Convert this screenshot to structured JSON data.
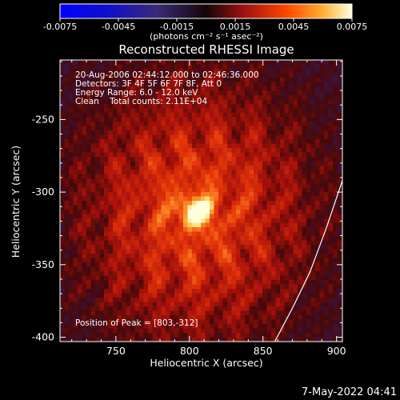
{
  "chart_data": {
    "type": "heatmap",
    "title": "Reconstructed RHESSI Image",
    "xlabel": "Heliocentric X (arcsec)",
    "ylabel": "Heliocentric Y (arcsec)",
    "xlim": [
      712,
      904
    ],
    "ylim": [
      -403,
      -209
    ],
    "x_ticks": [
      750,
      800,
      850,
      900
    ],
    "y_ticks": [
      -250,
      -300,
      -350,
      -400
    ],
    "colorbar": {
      "range": [
        -0.0075,
        0.0075
      ],
      "ticks": [
        "-0.0075",
        "-0.0045",
        "-0.0015",
        "0.0015",
        "0.0045",
        "0.0075"
      ],
      "unit_label": "(photons cm⁻² s⁻¹ asec⁻²)"
    },
    "info_lines": [
      "20-Aug-2006 02:44:12.000 to 02:46:36.000",
      "Detectors: 3F 4F 5F 6F 7F 8F, Att 0",
      "Energy Range: 6.0 - 12.0 keV",
      "Clean    Total counts: 2.11E+04"
    ],
    "peak": {
      "x": 803,
      "y": -312,
      "label": "Position of Peak = [803,-312]"
    },
    "limb": [
      [
        858,
        -403
      ],
      [
        870,
        -380
      ],
      [
        882,
        -355
      ],
      [
        893,
        -325
      ],
      [
        904,
        -292
      ]
    ],
    "timestamp": "7-May-2022 04:41"
  }
}
